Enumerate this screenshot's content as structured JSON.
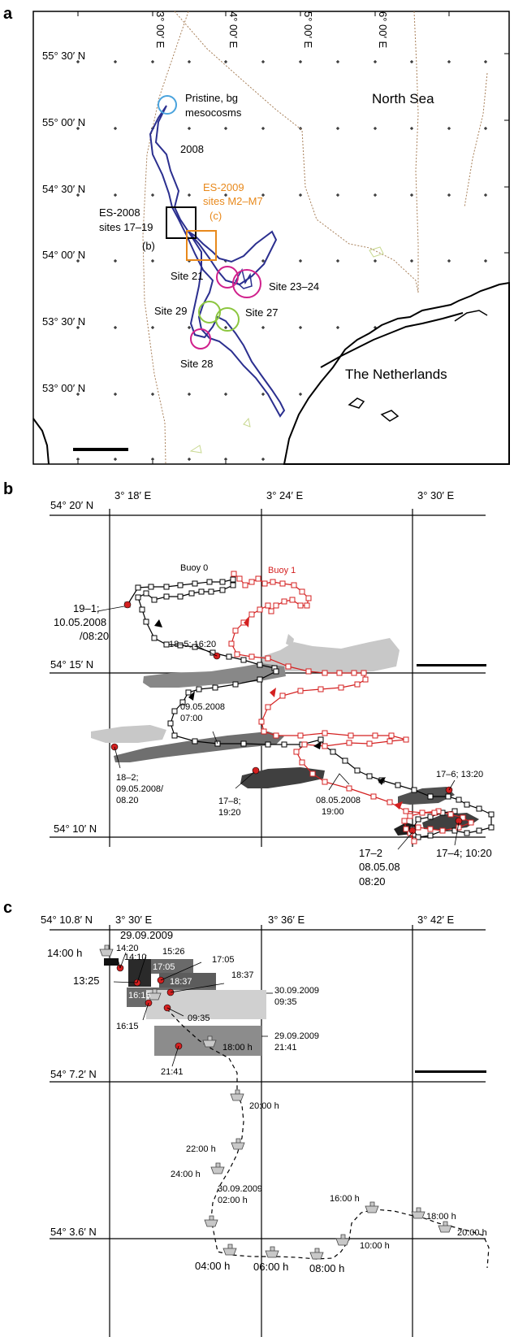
{
  "panel_a": {
    "label": "a",
    "lon_labels": [
      "3° 00′ E",
      "4° 00′ E",
      "5° 00′ E",
      "6° 00′ E"
    ],
    "lat_labels": [
      "55° 30′ N",
      "55° 00′ N",
      "54° 30′ N",
      "54° 00′ N",
      "53° 30′ N",
      "53° 00′ N"
    ],
    "north_sea": "North Sea",
    "netherlands": "The Netherlands",
    "pristine_1": "Pristine, bg",
    "pristine_2": "mesocosms",
    "track_year": "2008",
    "es2009_1": "ES-2009",
    "es2009_2": "sites M2–M7",
    "es2009_ref": "(c)",
    "es2008_1": "ES-2008",
    "es2008_2": "sites 17–19",
    "es2008_ref": "(b)",
    "site21": "Site 21",
    "site2324": "Site 23–24",
    "site29": "Site 29",
    "site27": "Site 27",
    "site28": "Site 28",
    "colors": {
      "track": "#2b2f8f",
      "pristine": "#4aa3dd",
      "es2009": "#e8891c",
      "es2008": "#000000",
      "site_magenta": "#d0208c",
      "site_green": "#8cc63f",
      "border": "#a8805a"
    }
  },
  "panel_b": {
    "label": "b",
    "lon_labels": [
      "3° 18′ E",
      "3° 24′ E",
      "3° 30′ E"
    ],
    "lat_labels": [
      "54° 20′ N",
      "54° 15′ N",
      "54° 10′ N"
    ],
    "buoy0": "Buoy 0",
    "buoy1": "Buoy 1",
    "l_19_1": "19–1;",
    "l_19_2": "10.05.2008",
    "l_19_3": "/08:20",
    "l_185": "18–5; 16:20",
    "l_0905_1": "09.05.2008",
    "l_0905_2": "07:00",
    "l_182_1": "18–2;",
    "l_182_2": "09.05.2008/",
    "l_182_3": "08.20",
    "l_178_1": "17–8;",
    "l_178_2": "19:20",
    "l_0805_1": "08.05.2008",
    "l_0805_2": "19:00",
    "l_176": "17–6; 13:20",
    "l_172_1": "17–2",
    "l_172_2": "08.05.08",
    "l_172_3": "08:20",
    "l_174": "17–4; 10:20",
    "colors": {
      "buoy0": "#000000",
      "buoy1": "#d42020"
    }
  },
  "panel_c": {
    "label": "c",
    "lon_labels": [
      "54° 10.8′ N",
      "3° 30′ E",
      "3° 36′ E",
      "3° 42′ E"
    ],
    "lat_labels": [
      "54° 7.2′ N",
      "54° 3.6′ N"
    ],
    "date_top": "29.09.2009",
    "t1400h": "14:00 h",
    "t1420": "14:20",
    "t1410": "14:10",
    "t1526": "15:26",
    "t1705": "17:05",
    "t1705b": "17:05",
    "t1325": "13:25",
    "t1837": "18:37",
    "t1837b": "18:37",
    "t1615w": "16:15",
    "t1615": "16:15",
    "t0935": "09:35",
    "d3009_1": "30.09.2009",
    "d3009_2": "09:35",
    "t1800h": "18:00 h",
    "d2909_1": "29.09.2009",
    "d2909_2": "21:41",
    "t2141": "21:41",
    "t2000h": "20:00 h",
    "t2200h": "22:00 h",
    "t2400h": "24:00 h",
    "d3009b_1": "30.09.2009",
    "d3009b_2": "02:00 h",
    "t0400h": "04:00 h",
    "t0600h": "06:00 h",
    "t0800h": "08:00 h",
    "t1000h": "10:00 h",
    "t1600h": "16:00 h",
    "t1800hb": "18:00 h",
    "t2000hb": "20:00 h"
  }
}
